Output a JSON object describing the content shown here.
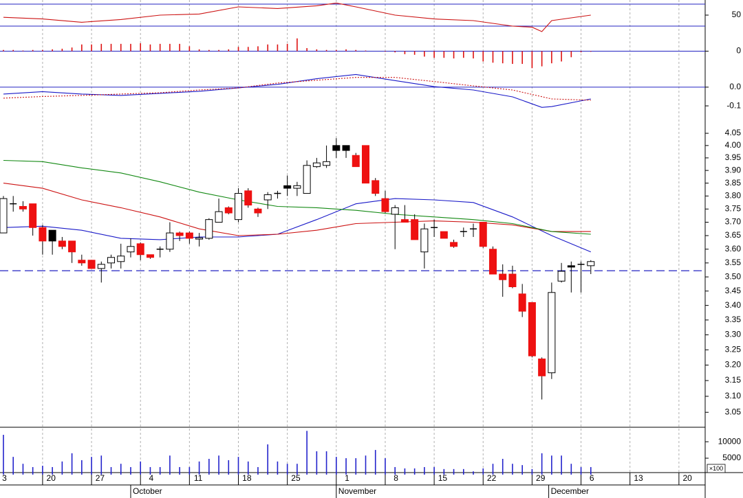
{
  "chart_data": [
    {
      "type": "line",
      "xlim": [
        -0.35,
        71.68
      ],
      "ylim": [
        10,
        77.5
      ],
      "yticks": [
        50
      ],
      "levels": [
        70,
        30
      ],
      "level_color": "#2020c0",
      "series": [
        {
          "color": "#cc1111",
          "x": [
            0,
            4,
            8,
            12,
            16,
            20,
            24,
            28,
            32,
            34,
            36,
            40,
            44,
            48,
            52,
            54,
            55,
            56,
            60
          ],
          "values": [
            46,
            43,
            37,
            42,
            50,
            52,
            65,
            62,
            67,
            72,
            65,
            50,
            43,
            40,
            30,
            28,
            20,
            40,
            50
          ]
        }
      ]
    },
    {
      "type": "bar",
      "xlim": [
        -0.35,
        71.68
      ],
      "ylim": [
        -0.03,
        0.022
      ],
      "yticks": [
        0
      ],
      "levels": [
        0
      ],
      "level_color": "#2020c0",
      "color": "#dd1111",
      "values": [
        0.002,
        0.002,
        0.001,
        0.002,
        0.002,
        0.003,
        0.004,
        0.006,
        0.011,
        0.011,
        0.012,
        0.012,
        0.012,
        0.012,
        0.013,
        0.011,
        0.012,
        0.012,
        0.012,
        0.008,
        0.003,
        0.002,
        0.002,
        0.003,
        0.007,
        0.007,
        0.008,
        0.011,
        0.011,
        0.012,
        0.021,
        0.005,
        0.003,
        0.002,
        0.002,
        0.003,
        0.002,
        0.001,
        0,
        -0.001,
        -0.002,
        -0.005,
        -0.006,
        -0.009,
        -0.011,
        -0.011,
        -0.012,
        -0.011,
        -0.012,
        -0.017,
        -0.019,
        -0.02,
        -0.021,
        -0.021,
        -0.028,
        -0.025,
        -0.02,
        -0.017,
        -0.01,
        -0.002,
        -0.001
      ]
    },
    {
      "type": "line",
      "xlim": [
        -0.35,
        71.68
      ],
      "ylim": [
        -0.14,
        0.095
      ],
      "yticks": [
        {
          "value": 0,
          "label": "0.0"
        },
        -0.1
      ],
      "levels": [
        0
      ],
      "level_color": "#2020c0",
      "series": [
        {
          "color": "#1818c8",
          "x": [
            0,
            4,
            8,
            12,
            16,
            20,
            24,
            28,
            32,
            36,
            40,
            44,
            48,
            52,
            55,
            56,
            60
          ],
          "values": [
            -0.037,
            -0.024,
            -0.037,
            -0.044,
            -0.033,
            -0.022,
            -0.004,
            0.015,
            0.045,
            0.068,
            0.035,
            0.003,
            -0.015,
            -0.052,
            -0.108,
            -0.104,
            -0.063
          ]
        },
        {
          "color": "#cc1111",
          "style": "dotted",
          "x": [
            0,
            4,
            8,
            12,
            16,
            20,
            24,
            28,
            32,
            36,
            40,
            44,
            48,
            52,
            56,
            60
          ],
          "values": [
            -0.059,
            -0.05,
            -0.044,
            -0.037,
            -0.03,
            -0.015,
            -0.004,
            0.022,
            0.037,
            0.052,
            0.052,
            0.03,
            0.007,
            -0.015,
            -0.063,
            -0.07
          ]
        }
      ]
    },
    {
      "type": "candlestick",
      "xlim": [
        -0.35,
        71.68
      ],
      "ylim": [
        3.004,
        4.133
      ],
      "log": true,
      "yticks": [
        4.05,
        {
          "value": 4,
          "label": "4.00"
        },
        3.95,
        {
          "value": 3.9,
          "label": "3.90"
        },
        3.85,
        {
          "value": 3.8,
          "label": "3.80"
        },
        3.75,
        {
          "value": 3.7,
          "label": "3.70"
        },
        3.65,
        {
          "value": 3.6,
          "label": "3.60"
        },
        3.55,
        {
          "value": 3.5,
          "label": "3.50"
        },
        3.45,
        {
          "value": 3.4,
          "label": "3.40"
        },
        3.35,
        {
          "value": 3.3,
          "label": "3.30"
        },
        3.25,
        {
          "value": 3.2,
          "label": "3.20"
        },
        3.15,
        {
          "value": 3.1,
          "label": "3.10"
        },
        3.05
      ],
      "reference_line": 3.522,
      "reference_color": "#2020c0",
      "colors": {
        "up": "#ffffff",
        "down": "#ee1111",
        "down_above_previous": "#000000"
      },
      "open": [
        3.66,
        3.77,
        3.76,
        3.77,
        3.68,
        3.67,
        3.63,
        3.63,
        3.56,
        3.56,
        3.53,
        3.55,
        3.555,
        3.59,
        3.62,
        3.58,
        3.6,
        3.6,
        3.66,
        3.66,
        3.637,
        3.64,
        3.7,
        3.755,
        3.71,
        3.82,
        3.75,
        3.785,
        3.81,
        3.84,
        3.83,
        3.81,
        3.915,
        3.92,
        4.0,
        4.0,
        3.96,
        4.0,
        3.86,
        3.79,
        3.73,
        3.71,
        3.71,
        3.59,
        3.68,
        3.665,
        3.625,
        3.665,
        3.675,
        3.7,
        3.6,
        3.51,
        3.51,
        3.44,
        3.41,
        3.22,
        3.175,
        3.485,
        3.54,
        3.545,
        3.54
      ],
      "high": [
        3.8,
        3.8,
        3.78,
        3.77,
        3.69,
        3.67,
        3.645,
        3.63,
        3.58,
        3.56,
        3.555,
        3.58,
        3.62,
        3.64,
        3.625,
        3.58,
        3.61,
        3.7,
        3.665,
        3.665,
        3.66,
        3.715,
        3.79,
        3.76,
        3.83,
        3.83,
        3.755,
        3.815,
        3.82,
        3.88,
        3.855,
        3.94,
        3.95,
        4.0,
        4.03,
        4.0,
        3.97,
        4.0,
        3.87,
        3.82,
        3.765,
        3.765,
        3.73,
        3.695,
        3.71,
        3.665,
        3.635,
        3.68,
        3.695,
        3.7,
        3.61,
        3.545,
        3.54,
        3.475,
        3.41,
        3.225,
        3.48,
        3.55,
        3.555,
        3.555,
        3.56
      ],
      "low": [
        3.66,
        3.74,
        3.74,
        3.65,
        3.58,
        3.58,
        3.6,
        3.55,
        3.54,
        3.53,
        3.48,
        3.53,
        3.53,
        3.57,
        3.56,
        3.565,
        3.57,
        3.59,
        3.63,
        3.62,
        3.61,
        3.635,
        3.7,
        3.73,
        3.7,
        3.755,
        3.72,
        3.75,
        3.79,
        3.8,
        3.8,
        3.81,
        3.91,
        3.91,
        3.95,
        3.95,
        3.915,
        3.85,
        3.8,
        3.735,
        3.6,
        3.7,
        3.635,
        3.53,
        3.645,
        3.64,
        3.605,
        3.645,
        3.645,
        3.605,
        3.51,
        3.43,
        3.46,
        3.36,
        3.225,
        3.09,
        3.155,
        3.48,
        3.445,
        3.445,
        3.51
      ],
      "close": [
        3.79,
        3.77,
        3.75,
        3.68,
        3.63,
        3.63,
        3.61,
        3.59,
        3.55,
        3.53,
        3.545,
        3.57,
        3.575,
        3.61,
        3.58,
        3.57,
        3.6,
        3.66,
        3.65,
        3.64,
        3.642,
        3.71,
        3.74,
        3.735,
        3.81,
        3.765,
        3.735,
        3.805,
        3.81,
        3.83,
        3.84,
        3.92,
        3.93,
        3.935,
        3.98,
        3.98,
        3.915,
        3.85,
        3.81,
        3.74,
        3.755,
        3.7,
        3.635,
        3.675,
        3.68,
        3.64,
        3.61,
        3.665,
        3.675,
        3.61,
        3.51,
        3.49,
        3.465,
        3.38,
        3.23,
        3.165,
        3.445,
        3.52,
        3.535,
        3.545,
        3.555
      ],
      "series": [
        {
          "color": "#1818c8",
          "x": [
            0,
            4,
            8,
            12,
            16,
            20,
            24,
            28,
            32,
            36,
            40,
            44,
            48,
            52,
            56,
            60
          ],
          "values": [
            3.68,
            3.685,
            3.67,
            3.64,
            3.635,
            3.645,
            3.645,
            3.655,
            3.71,
            3.77,
            3.79,
            3.785,
            3.775,
            3.72,
            3.65,
            3.59
          ]
        },
        {
          "color": "#cc1111",
          "x": [
            0,
            4,
            8,
            12,
            16,
            20,
            24,
            28,
            32,
            36,
            40,
            44,
            48,
            52,
            56,
            60
          ],
          "values": [
            3.85,
            3.83,
            3.785,
            3.755,
            3.72,
            3.675,
            3.65,
            3.655,
            3.67,
            3.695,
            3.7,
            3.705,
            3.7,
            3.69,
            3.665,
            3.665
          ]
        },
        {
          "color": "#118811",
          "x": [
            0,
            4,
            8,
            12,
            16,
            20,
            24,
            28,
            32,
            36,
            40,
            44,
            48,
            52,
            56,
            60
          ],
          "values": [
            3.94,
            3.935,
            3.91,
            3.89,
            3.855,
            3.815,
            3.785,
            3.76,
            3.755,
            3.745,
            3.73,
            3.72,
            3.71,
            3.695,
            3.665,
            3.655
          ]
        }
      ]
    },
    {
      "type": "bar",
      "xlim": [
        -0.35,
        71.68
      ],
      "ylim": [
        0,
        14400
      ],
      "yticks": [
        10000,
        5000
      ],
      "unit_label": "×100",
      "color": "#2222cc",
      "values": [
        12100,
        5400,
        3300,
        2300,
        2700,
        2300,
        4000,
        6500,
        4400,
        5400,
        5800,
        2300,
        3300,
        2300,
        4000,
        2300,
        2300,
        5800,
        2300,
        2300,
        4000,
        4800,
        5800,
        4400,
        5400,
        4000,
        2300,
        9200,
        4000,
        3300,
        3300,
        13300,
        7100,
        7100,
        5400,
        5000,
        5000,
        5800,
        7500,
        5000,
        2300,
        1900,
        1900,
        2300,
        2300,
        1700,
        1700,
        1700,
        1000,
        1900,
        3300,
        4800,
        3300,
        2900,
        1700,
        6500,
        5800,
        5800,
        3300,
        2300,
        2300
      ],
      "xticks": [
        {
          "value": -1,
          "label": "3"
        },
        {
          "value": 4,
          "label": "20"
        },
        {
          "value": 9,
          "label": "27"
        },
        {
          "value": 14,
          "label": "4"
        },
        {
          "value": 19,
          "label": "11"
        },
        {
          "value": 24,
          "label": "18"
        },
        {
          "value": 29,
          "label": "25"
        },
        {
          "value": 34,
          "label": "1"
        },
        {
          "value": 39,
          "label": "8"
        },
        {
          "value": 44,
          "label": "15"
        },
        {
          "value": 49,
          "label": "22"
        },
        {
          "value": 54,
          "label": "29"
        },
        {
          "value": 59,
          "label": "6"
        },
        {
          "value": 64,
          "label": "13"
        },
        {
          "value": 69,
          "label": "20"
        }
      ],
      "month_ticks": [
        {
          "value": 13,
          "label": "October"
        },
        {
          "value": 34,
          "label": "November"
        },
        {
          "value": 55.7,
          "label": "December"
        }
      ],
      "grid": true
    }
  ]
}
